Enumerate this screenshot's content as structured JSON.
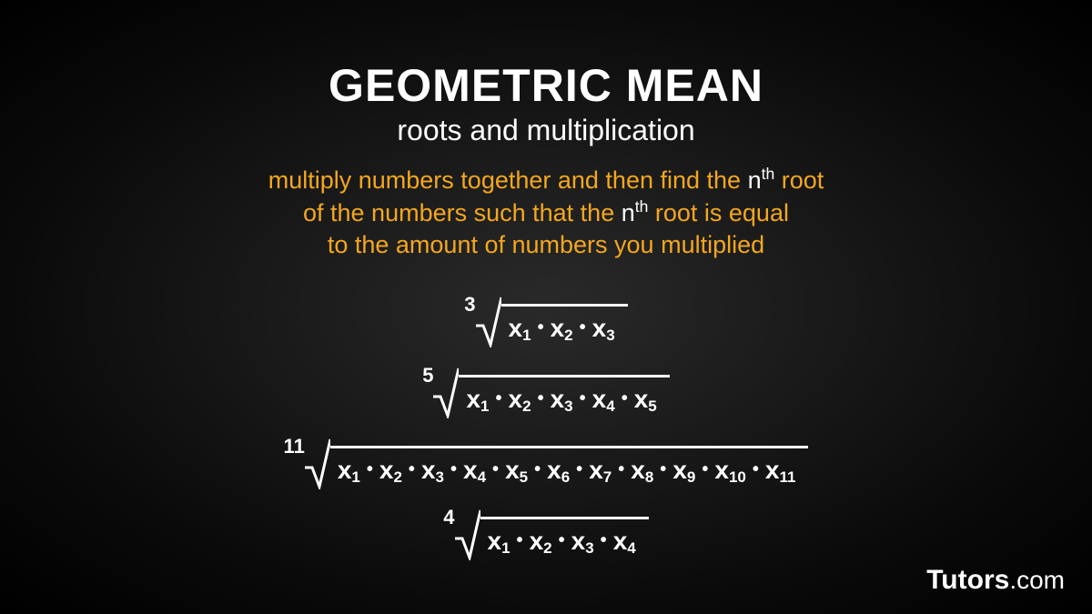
{
  "title": "GEOMETRIC MEAN",
  "subtitle": "roots and multiplication",
  "description": {
    "line1_pre": "multiply numbers together and then find the ",
    "nth1": "n",
    "nth1_sup": "th",
    "line1_post": " root",
    "line2_pre": "of the numbers such that the ",
    "nth2": "n",
    "nth2_sup": "th",
    "line2_post": " root is equal",
    "line3": "to the amount of numbers you multiplied"
  },
  "formulas": [
    {
      "index": "3",
      "terms": [
        "1",
        "2",
        "3"
      ]
    },
    {
      "index": "5",
      "terms": [
        "1",
        "2",
        "3",
        "4",
        "5"
      ]
    },
    {
      "index": "11",
      "terms": [
        "1",
        "2",
        "3",
        "4",
        "5",
        "6",
        "7",
        "8",
        "9",
        "10",
        "11"
      ]
    },
    {
      "index": "4",
      "terms": [
        "1",
        "2",
        "3",
        "4"
      ]
    }
  ],
  "variable": "x",
  "dot": "•",
  "watermark": {
    "brand": "Tutors",
    "suffix": ".com"
  },
  "colors": {
    "title": "#ffffff",
    "subtitle": "#ffffff",
    "description": "#f4a71d",
    "nth": "#ffffff",
    "formula": "#ffffff",
    "watermark": "#ffffff"
  },
  "typography": {
    "title_size": 50,
    "subtitle_size": 32,
    "description_size": 27,
    "formula_size": 28,
    "watermark_size": 30
  }
}
